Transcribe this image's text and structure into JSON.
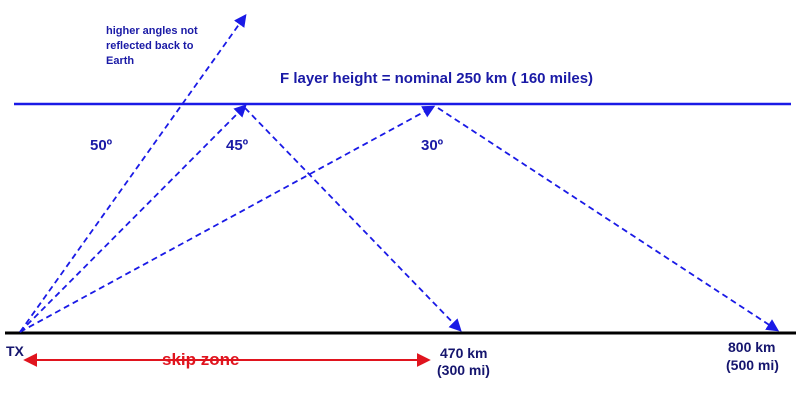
{
  "labels": {
    "layer_title": "F layer height = nominal 250 km ( 160 miles)",
    "note_line1": "higher angles not",
    "note_line2": "reflected back to",
    "note_line3": "Earth",
    "angle_50": "50º",
    "angle_45": "45º",
    "angle_30": "30º",
    "tx": "TX",
    "skip_zone": "skip zone",
    "dist_470_km": "470 km",
    "dist_470_mi": "(300 mi)",
    "dist_800_km": "800 km",
    "dist_800_mi": "(500 mi)"
  },
  "colors": {
    "ray": "#1a1ae6",
    "layer_line": "#1a1ae6",
    "ground_line": "#000000",
    "skip_arrow": "#e0141e",
    "label_blue": "#1a1aa6"
  }
}
